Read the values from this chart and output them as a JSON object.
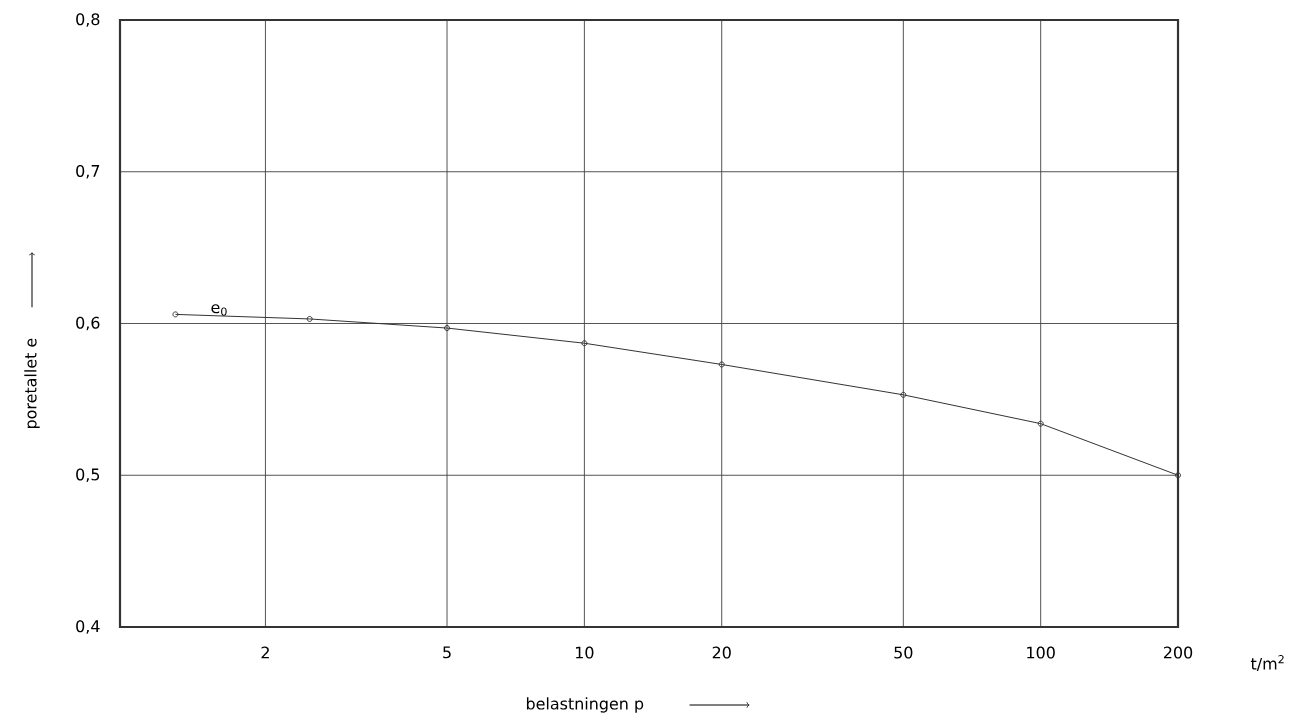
{
  "chart_data": {
    "type": "line",
    "xlabel": "belastningen p",
    "ylabel": "poretallet e",
    "log": "x",
    "x": [
      1.27,
      2.5,
      5,
      10,
      20,
      50,
      100,
      200
    ],
    "series": [
      {
        "color": "#333333",
        "values": [
          0.606,
          0.603,
          0.597,
          0.587,
          0.573,
          0.553,
          0.534,
          0.5
        ]
      }
    ],
    "xlim": [
      0.96,
      200
    ],
    "xticks": [
      2,
      5,
      10,
      20,
      50,
      100,
      200
    ],
    "ylim": [
      0.4,
      0.8
    ],
    "yticks": [
      {
        "value": 0.4,
        "label": "0,4"
      },
      {
        "value": 0.5,
        "label": "0,5"
      },
      {
        "value": 0.6,
        "label": "0,6"
      },
      {
        "value": 0.7,
        "label": "0,7"
      },
      {
        "value": 0.8,
        "label": "0,8"
      }
    ],
    "grid": true,
    "marker": "circle",
    "line_style": "solid",
    "annotations": [
      "e$_{0}$",
      "t/m$^{2}$"
    ]
  }
}
